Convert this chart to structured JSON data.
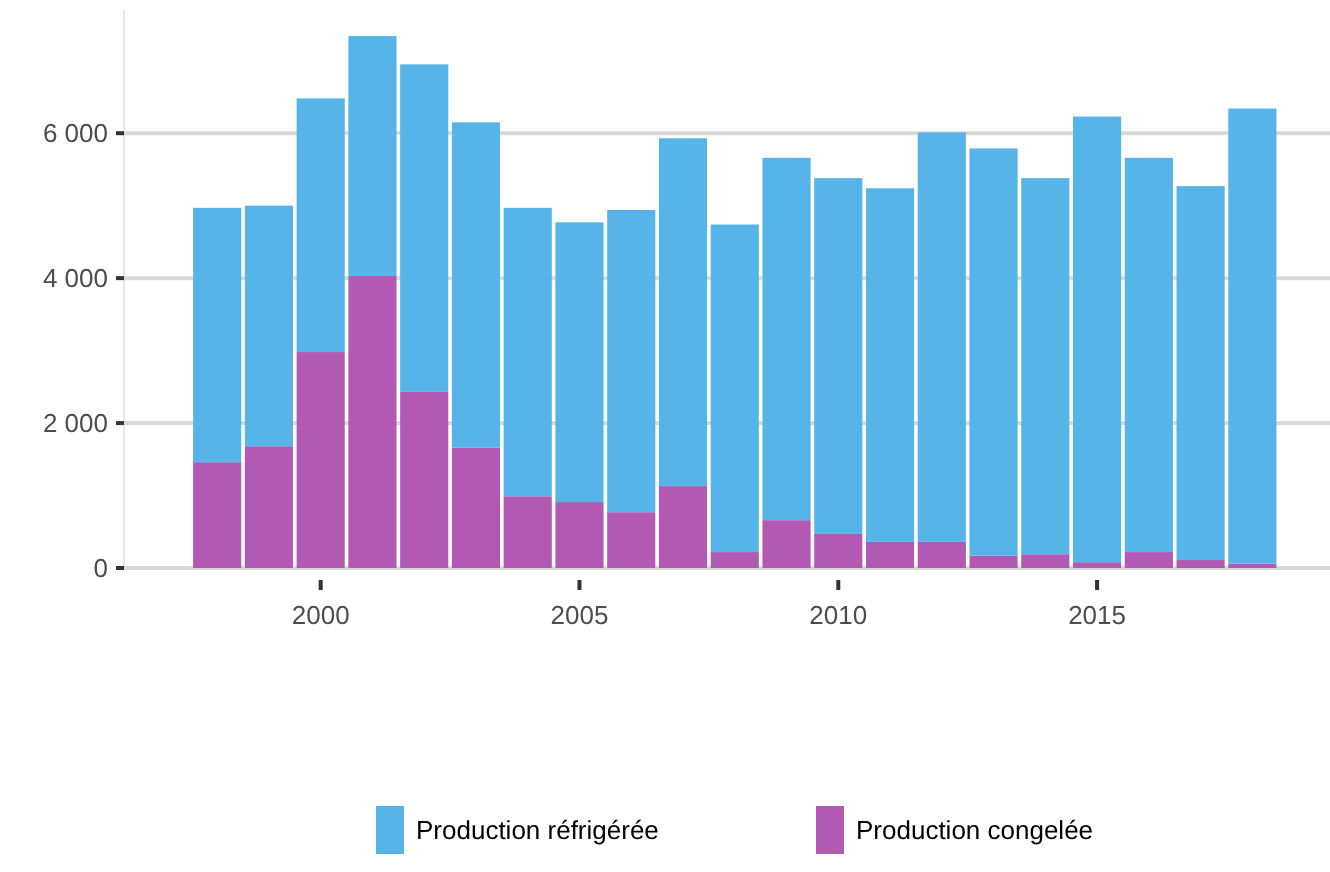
{
  "chart_data": {
    "type": "bar",
    "stacked": true,
    "x": [
      1998,
      1999,
      2000,
      2001,
      2002,
      2003,
      2004,
      2005,
      2006,
      2007,
      2008,
      2009,
      2010,
      2011,
      2012,
      2013,
      2014,
      2015,
      2016,
      2017,
      2018
    ],
    "series": [
      {
        "name": "Production congelée",
        "color": "#b259b3",
        "values": [
          1460,
          1680,
          2980,
          4030,
          2430,
          1660,
          990,
          910,
          770,
          1130,
          220,
          660,
          470,
          360,
          360,
          170,
          190,
          80,
          220,
          110,
          60
        ]
      },
      {
        "name": "Production réfrigérée",
        "color": "#56b4e8",
        "values": [
          3510,
          3320,
          3500,
          3310,
          4520,
          4490,
          3980,
          3860,
          4170,
          4800,
          4520,
          5000,
          4910,
          4880,
          5650,
          5620,
          5190,
          6150,
          5440,
          5160,
          6280
        ]
      }
    ],
    "xlim": [
      1996.2,
      2019.5
    ],
    "xticks": [
      2000,
      2005,
      2010,
      2015
    ],
    "ylim": [
      0,
      7700
    ],
    "yticks": [
      {
        "value": 0,
        "label": "0"
      },
      {
        "value": 2000,
        "label": "2 000"
      },
      {
        "value": 4000,
        "label": "4 000"
      },
      {
        "value": 6000,
        "label": "6 000"
      }
    ],
    "grid": "y",
    "legend": "bottom"
  }
}
